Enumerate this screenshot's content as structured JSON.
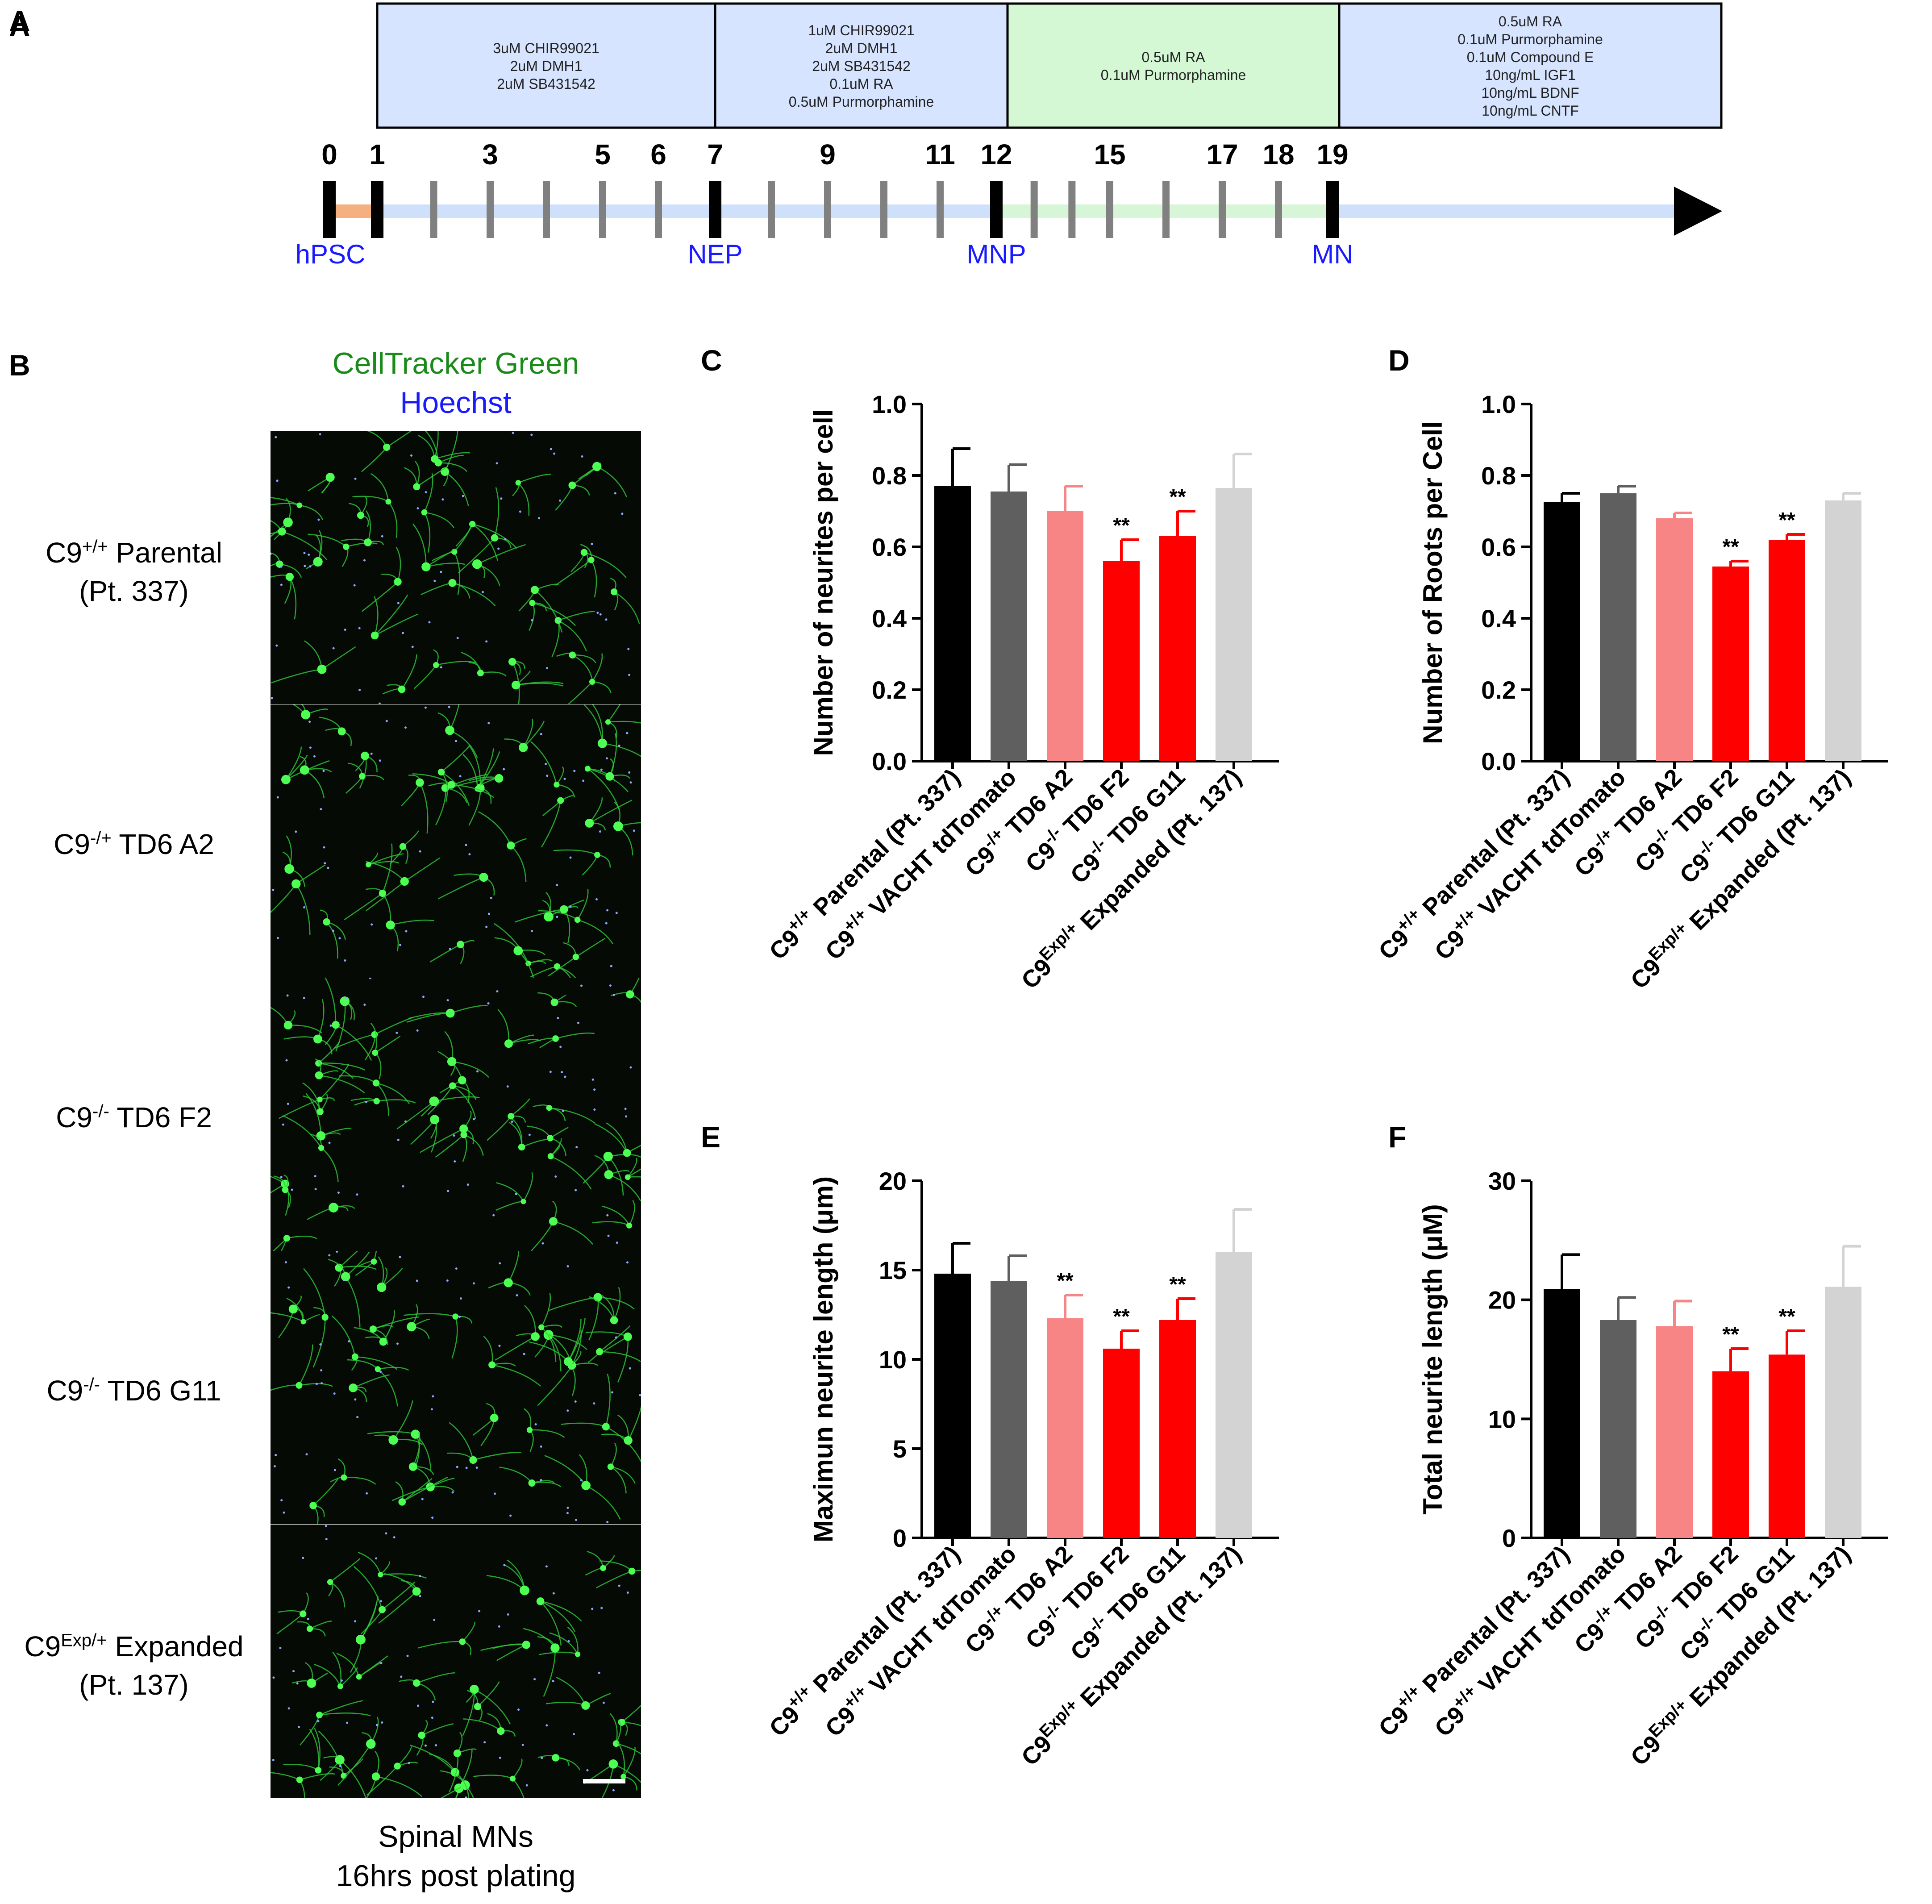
{
  "panels": {
    "a": "A",
    "b": "B",
    "c": "C",
    "d": "D",
    "e": "E",
    "f": "F"
  },
  "timeline": {
    "boxes": [
      {
        "lines": [
          "3uM CHIR99021",
          "2uM DMH1",
          "2uM SB431542"
        ],
        "color": "#d6e4ff"
      },
      {
        "lines": [
          "1uM CHIR99021",
          "2uM DMH1",
          "2uM SB431542",
          "0.1uM RA",
          "0.5uM Purmorphamine"
        ],
        "color": "#d6e4ff"
      },
      {
        "lines": [
          "0.5uM RA",
          "0.1uM Purmorphamine"
        ],
        "color": "#d4f7d4"
      },
      {
        "lines": [
          "0.5uM RA",
          "0.1uM Purmorphamine",
          "0.1uM Compound E",
          "10ng/mL IGF1",
          "10ng/mL BDNF",
          "10ng/mL CNTF"
        ],
        "color": "#d6e4ff"
      }
    ],
    "day_labels": [
      "0",
      "1",
      "3",
      "5",
      "6",
      "7",
      "9",
      "11",
      "12",
      "15",
      "17",
      "18",
      "19"
    ],
    "stages": [
      "hPSC",
      "NEP",
      "MNP",
      "MN"
    ],
    "colors": {
      "stage_text": "#1a1aff",
      "orange": "#f5b080",
      "blue": "#cfe0fb",
      "green": "#d7f5d7",
      "tick": "#808080",
      "major": "#000000"
    }
  },
  "panel_b": {
    "title_line1": "CellTracker Green",
    "title_line2": "Hoechst",
    "title_colors": [
      "#1a8a1a",
      "#1a1aff"
    ],
    "rows": [
      {
        "pre": "C9",
        "sup": "+/+",
        "post": " Parental",
        "line2": "(Pt. 337)"
      },
      {
        "pre": "C9",
        "sup": "-/+",
        "post": " TD6 A2",
        "line2": ""
      },
      {
        "pre": "C9",
        "sup": "-/-",
        "post": "  TD6 F2",
        "line2": ""
      },
      {
        "pre": "C9",
        "sup": "-/-",
        "post": " TD6 G11",
        "line2": ""
      },
      {
        "pre": "C9",
        "sup": "Exp/+",
        "post": " Expanded",
        "line2": "(Pt. 137)"
      }
    ],
    "caption_line1": "Spinal MNs",
    "caption_line2": "16hrs post plating"
  },
  "categories": [
    {
      "base": "C9",
      "sup": "+/+",
      "rest": " Parental (Pt. 337)"
    },
    {
      "base": "C9",
      "sup": "+/+",
      "rest": " VACHT tdTomato"
    },
    {
      "base": "C9",
      "sup": "-/+",
      "rest": " TD6 A2"
    },
    {
      "base": "C9",
      "sup": "-/-",
      "rest": " TD6 F2"
    },
    {
      "base": "C9",
      "sup": "-/-",
      "rest": " TD6 G11"
    },
    {
      "base": "C9",
      "sup": "Exp/+",
      "rest": " Expanded (Pt. 137)"
    }
  ],
  "bar_colors": [
    "#000000",
    "#5f5f5f",
    "#f78585",
    "#ff0000",
    "#ff0000",
    "#d3d3d3"
  ],
  "chart_data": [
    {
      "panel": "C",
      "type": "bar",
      "ylabel": "Number of neurites per cell",
      "ylim": [
        0,
        1.0
      ],
      "ticks": [
        "0.0",
        "0.2",
        "0.4",
        "0.6",
        "0.8",
        "1.0"
      ],
      "values": [
        0.77,
        0.755,
        0.7,
        0.56,
        0.63,
        0.765
      ],
      "errors": [
        0.105,
        0.075,
        0.07,
        0.06,
        0.07,
        0.095
      ],
      "annotations": [
        "",
        "",
        "",
        "**",
        "**",
        ""
      ]
    },
    {
      "panel": "D",
      "type": "bar",
      "ylabel": "Number of Roots per Cell",
      "ylim": [
        0,
        1.0
      ],
      "ticks": [
        "0.0",
        "0.2",
        "0.4",
        "0.6",
        "0.8",
        "1.0"
      ],
      "values": [
        0.725,
        0.75,
        0.68,
        0.545,
        0.62,
        0.73
      ],
      "errors": [
        0.025,
        0.02,
        0.015,
        0.015,
        0.015,
        0.02
      ],
      "annotations": [
        "",
        "",
        "",
        "**",
        "**",
        ""
      ]
    },
    {
      "panel": "E",
      "type": "bar",
      "ylabel": "Maximun neurite length (μm)",
      "ylim": [
        0,
        20
      ],
      "ticks": [
        "0",
        "5",
        "10",
        "15",
        "20"
      ],
      "values": [
        14.8,
        14.4,
        12.3,
        10.6,
        12.2,
        16.0
      ],
      "errors": [
        1.7,
        1.4,
        1.3,
        1.0,
        1.2,
        2.4
      ],
      "annotations": [
        "",
        "",
        "**",
        "**",
        "**",
        ""
      ]
    },
    {
      "panel": "F",
      "type": "bar",
      "ylabel": "Total neurite length (μM)",
      "ylim": [
        0,
        30
      ],
      "ticks": [
        "0",
        "10",
        "20",
        "30"
      ],
      "values": [
        20.9,
        18.3,
        17.8,
        14.0,
        15.4,
        21.1
      ],
      "errors": [
        2.9,
        1.9,
        2.1,
        1.9,
        2.0,
        3.4
      ],
      "annotations": [
        "",
        "",
        "",
        "**",
        "**",
        ""
      ]
    }
  ]
}
